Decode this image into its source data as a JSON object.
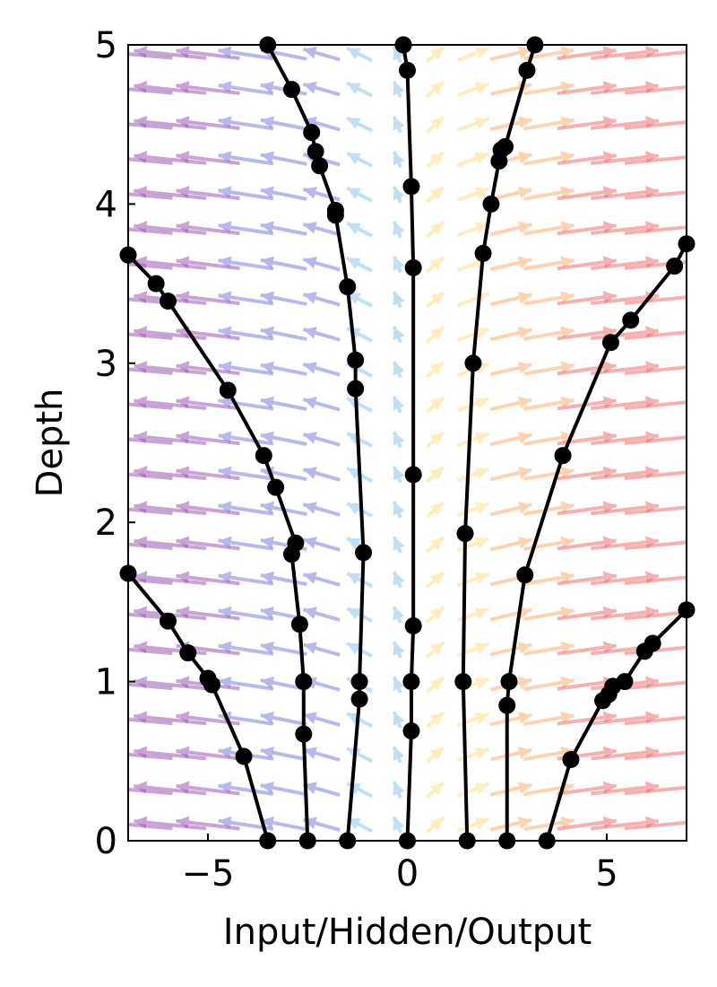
{
  "chart_data": {
    "type": "line",
    "title": "",
    "xlabel": "Input/Hidden/Output",
    "ylabel": "Depth",
    "xlim": [
      -7,
      7
    ],
    "ylim": [
      0,
      5
    ],
    "xticks": [
      -5,
      0,
      5
    ],
    "yticks": [
      0,
      1,
      2,
      3,
      4,
      5
    ],
    "grid": false,
    "legend": "none",
    "background_field": {
      "kind": "quiver",
      "description_colors": [
        "#9b59b6",
        "#7f7fe0",
        "#8ec5ee",
        "#ffe08a",
        "#ffb070",
        "#f07070"
      ]
    },
    "series": [
      {
        "x": [
          -3.5,
          -4.1,
          -4.9,
          -5.0,
          -5.5,
          -6.0,
          -7.0
        ],
        "y": [
          0.0,
          0.53,
          0.98,
          1.02,
          1.18,
          1.38,
          1.68
        ]
      },
      {
        "x": [
          -2.5,
          -2.6,
          -2.6,
          -2.7,
          -2.9,
          -2.8,
          -3.3,
          -3.6,
          -4.5,
          -6.0,
          -6.3,
          -7.0
        ],
        "y": [
          0.0,
          0.67,
          1.0,
          1.36,
          1.8,
          1.87,
          2.22,
          2.42,
          2.83,
          3.39,
          3.5,
          3.68
        ]
      },
      {
        "x": [
          -1.5,
          -1.2,
          -1.2,
          -1.1,
          -1.3,
          -1.3,
          -1.5,
          -1.8,
          -1.8,
          -2.2,
          -2.3,
          -2.4,
          -2.9,
          -3.5
        ],
        "y": [
          0.0,
          0.89,
          1.0,
          1.81,
          2.84,
          3.02,
          3.48,
          3.93,
          3.96,
          4.24,
          4.33,
          4.45,
          4.72,
          5.0
        ]
      },
      {
        "x": [
          0.0,
          0.1,
          0.1,
          0.15,
          0.15,
          0.15,
          0.1,
          0.0,
          -0.1,
          -0.1
        ],
        "y": [
          0.0,
          0.69,
          1.0,
          1.35,
          2.3,
          3.6,
          4.11,
          4.84,
          5.0,
          5.0
        ]
      },
      {
        "x": [
          1.5,
          1.4,
          1.45,
          1.65,
          1.9,
          2.1,
          2.3,
          2.35,
          2.45,
          3.0,
          3.2
        ],
        "y": [
          0.0,
          1.0,
          1.93,
          3.0,
          3.69,
          4.0,
          4.27,
          4.34,
          4.36,
          4.84,
          5.0
        ]
      },
      {
        "x": [
          2.5,
          2.5,
          2.55,
          2.95,
          3.9,
          5.1,
          5.6,
          6.7,
          7.0
        ],
        "y": [
          0.0,
          0.85,
          1.0,
          1.67,
          2.42,
          3.13,
          3.27,
          3.61,
          3.75
        ]
      },
      {
        "x": [
          3.5,
          4.1,
          4.9,
          5.05,
          5.15,
          5.45,
          5.95,
          6.15,
          7.0
        ],
        "y": [
          0.0,
          0.51,
          0.88,
          0.92,
          0.97,
          1.0,
          1.19,
          1.24,
          1.45
        ]
      }
    ]
  }
}
